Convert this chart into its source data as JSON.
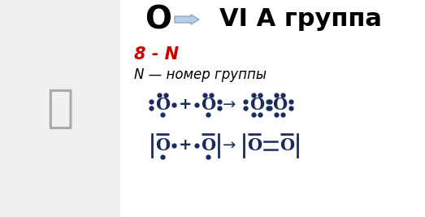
{
  "bg_color": "#ffffff",
  "dark_color": "#1c2b5e",
  "red_color": "#cc0000",
  "arrow_fill": "#b8cce4",
  "arrow_edge": "#8eaacc",
  "title_O": "O",
  "title_right": "VI A группа",
  "line1": "8 - N",
  "line2": "N — номер группы",
  "fig_w": 5.23,
  "fig_h": 2.67
}
